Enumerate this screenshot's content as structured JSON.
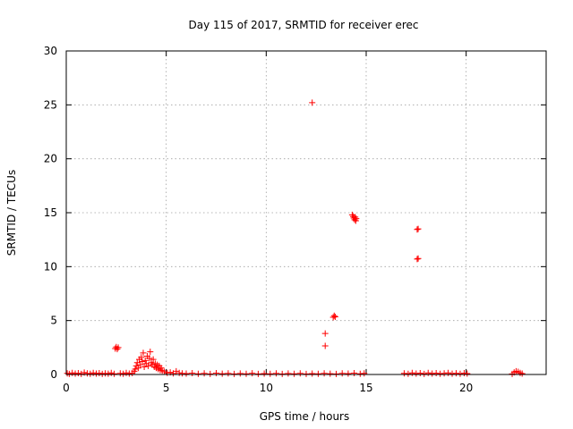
{
  "chart_data": {
    "type": "scatter",
    "title": "Day 115 of 2017, SRMTID for receiver erec",
    "xlabel": "GPS time / hours",
    "ylabel": "SRMTID / TECUs",
    "xlim": [
      0,
      24
    ],
    "ylim": [
      0,
      30
    ],
    "xticks": [
      0,
      5,
      10,
      15,
      20
    ],
    "yticks": [
      0,
      5,
      10,
      15,
      20,
      25,
      30
    ],
    "xtick_labels": [
      "0",
      "5",
      "10",
      "15",
      "20"
    ],
    "ytick_labels": [
      "0",
      "5",
      "10",
      "15",
      "20",
      "25",
      "30"
    ],
    "grid": true,
    "marker": "+",
    "color": "#ff0000",
    "series": [
      {
        "name": "SRMTID",
        "points": [
          [
            0.05,
            0.1
          ],
          [
            0.15,
            0.05
          ],
          [
            0.3,
            0.15
          ],
          [
            0.45,
            0.08
          ],
          [
            0.6,
            0.12
          ],
          [
            0.75,
            0.05
          ],
          [
            0.9,
            0.18
          ],
          [
            1.05,
            0.1
          ],
          [
            1.2,
            0.06
          ],
          [
            1.35,
            0.14
          ],
          [
            1.5,
            0.08
          ],
          [
            1.65,
            0.12
          ],
          [
            1.8,
            0.05
          ],
          [
            1.95,
            0.1
          ],
          [
            2.1,
            0.07
          ],
          [
            2.25,
            0.15
          ],
          [
            2.4,
            0.06
          ],
          [
            2.45,
            2.4
          ],
          [
            2.5,
            2.55
          ],
          [
            2.55,
            2.35
          ],
          [
            2.6,
            2.5
          ],
          [
            2.7,
            0.1
          ],
          [
            2.85,
            0.06
          ],
          [
            3.0,
            0.15
          ],
          [
            3.15,
            0.08
          ],
          [
            3.3,
            0.12
          ],
          [
            3.4,
            0.3
          ],
          [
            3.45,
            0.5
          ],
          [
            3.5,
            0.8
          ],
          [
            3.55,
            1.1
          ],
          [
            3.6,
            0.6
          ],
          [
            3.65,
            1.4
          ],
          [
            3.7,
            0.9
          ],
          [
            3.75,
            1.6
          ],
          [
            3.8,
            1.2
          ],
          [
            3.85,
            2.0
          ],
          [
            3.9,
            0.7
          ],
          [
            3.95,
            1.3
          ],
          [
            4.0,
            1.0
          ],
          [
            4.05,
            1.7
          ],
          [
            4.1,
            0.8
          ],
          [
            4.15,
            1.5
          ],
          [
            4.2,
            2.1
          ],
          [
            4.25,
            1.1
          ],
          [
            4.3,
            0.9
          ],
          [
            4.35,
            1.4
          ],
          [
            4.4,
            0.7
          ],
          [
            4.45,
            1.0
          ],
          [
            4.5,
            0.6
          ],
          [
            4.55,
            0.9
          ],
          [
            4.6,
            0.5
          ],
          [
            4.65,
            0.8
          ],
          [
            4.7,
            0.4
          ],
          [
            4.75,
            0.6
          ],
          [
            4.8,
            0.35
          ],
          [
            4.9,
            0.25
          ],
          [
            5.05,
            0.15
          ],
          [
            5.2,
            0.2
          ],
          [
            5.35,
            0.1
          ],
          [
            5.5,
            0.3
          ],
          [
            5.65,
            0.15
          ],
          [
            5.8,
            0.1
          ],
          [
            6.0,
            0.08
          ],
          [
            6.3,
            0.12
          ],
          [
            6.6,
            0.06
          ],
          [
            6.9,
            0.1
          ],
          [
            7.2,
            0.05
          ],
          [
            7.5,
            0.12
          ],
          [
            7.8,
            0.07
          ],
          [
            8.1,
            0.1
          ],
          [
            8.4,
            0.05
          ],
          [
            8.7,
            0.09
          ],
          [
            9.0,
            0.06
          ],
          [
            9.3,
            0.11
          ],
          [
            9.6,
            0.05
          ],
          [
            9.9,
            0.08
          ],
          [
            10.2,
            0.06
          ],
          [
            10.5,
            0.1
          ],
          [
            10.8,
            0.05
          ],
          [
            11.1,
            0.09
          ],
          [
            11.4,
            0.06
          ],
          [
            11.7,
            0.1
          ],
          [
            12.0,
            0.05
          ],
          [
            12.3,
            0.08
          ],
          [
            12.6,
            0.06
          ],
          [
            12.9,
            0.1
          ],
          [
            13.2,
            0.07
          ],
          [
            13.5,
            0.05
          ],
          [
            13.8,
            0.1
          ],
          [
            14.1,
            0.08
          ],
          [
            14.4,
            0.12
          ],
          [
            14.7,
            0.06
          ],
          [
            14.9,
            0.1
          ],
          [
            12.3,
            25.2
          ],
          [
            12.95,
            3.8
          ],
          [
            12.95,
            2.65
          ],
          [
            13.35,
            5.3
          ],
          [
            13.4,
            5.45
          ],
          [
            13.45,
            5.35
          ],
          [
            14.3,
            14.8
          ],
          [
            14.35,
            14.65
          ],
          [
            14.38,
            14.5
          ],
          [
            14.42,
            14.35
          ],
          [
            14.45,
            14.6
          ],
          [
            14.48,
            14.25
          ],
          [
            14.5,
            14.45
          ],
          [
            16.9,
            0.1
          ],
          [
            17.1,
            0.06
          ],
          [
            17.3,
            0.14
          ],
          [
            17.5,
            0.08
          ],
          [
            17.7,
            0.12
          ],
          [
            17.9,
            0.05
          ],
          [
            18.1,
            0.15
          ],
          [
            18.3,
            0.08
          ],
          [
            18.5,
            0.12
          ],
          [
            18.7,
            0.06
          ],
          [
            18.9,
            0.1
          ],
          [
            19.1,
            0.14
          ],
          [
            19.3,
            0.07
          ],
          [
            19.5,
            0.11
          ],
          [
            19.7,
            0.06
          ],
          [
            19.9,
            0.12
          ],
          [
            20.05,
            0.08
          ],
          [
            17.55,
            13.45
          ],
          [
            17.6,
            13.5
          ],
          [
            17.55,
            10.7
          ],
          [
            17.6,
            10.75
          ],
          [
            22.3,
            0.05
          ],
          [
            22.4,
            0.2
          ],
          [
            22.5,
            0.3
          ],
          [
            22.6,
            0.25
          ],
          [
            22.7,
            0.15
          ],
          [
            22.8,
            0.08
          ]
        ]
      }
    ]
  }
}
